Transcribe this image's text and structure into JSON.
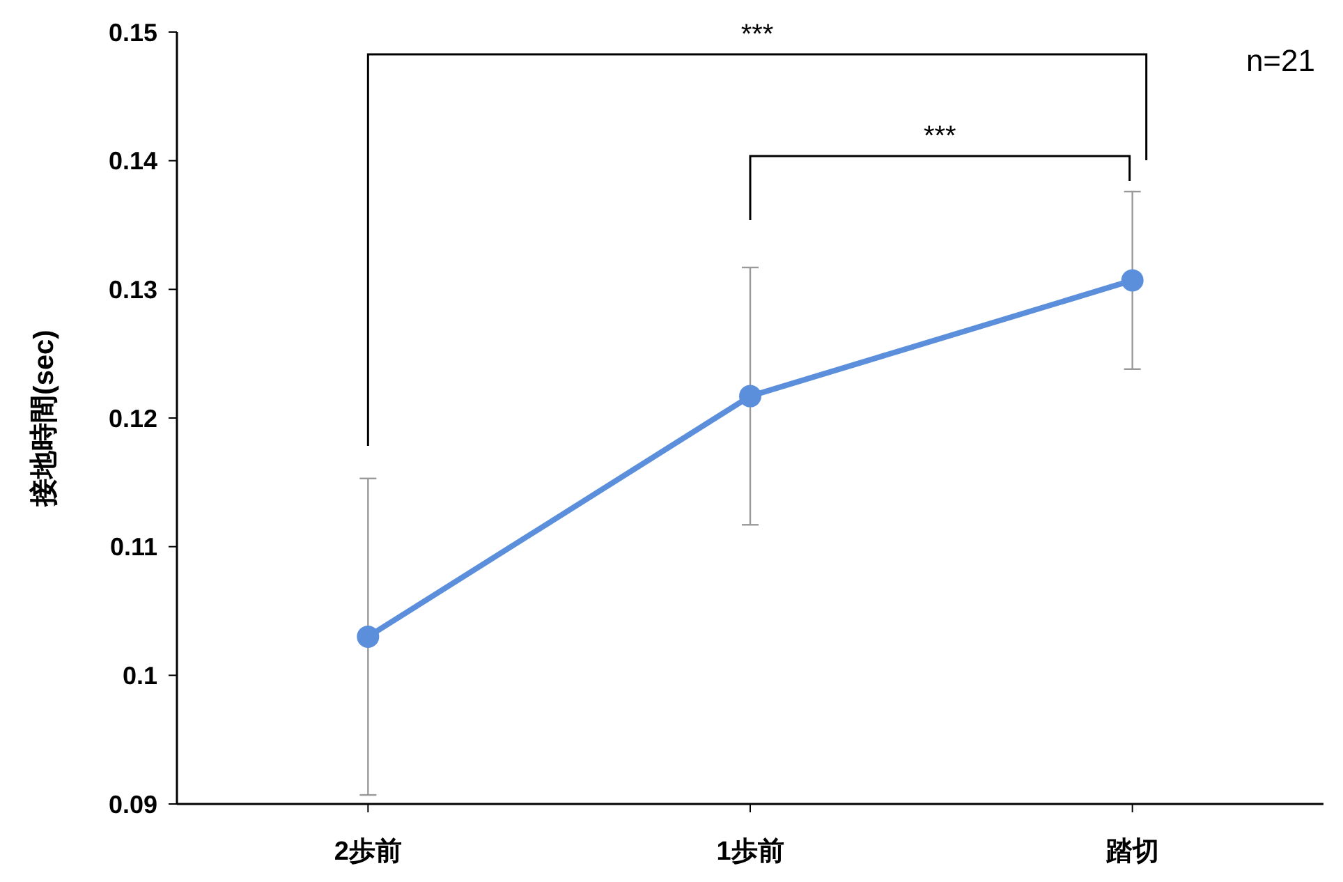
{
  "chart_data": {
    "type": "line",
    "ylabel": "接地時間(sec)",
    "categories": [
      "2歩前",
      "1歩前",
      "踏切"
    ],
    "series": [
      {
        "color": "#5b8fdc",
        "values": [
          0.103,
          0.1217,
          0.1307
        ],
        "errors": [
          0.0123,
          0.01,
          0.0069
        ]
      }
    ],
    "ylim": [
      0.09,
      0.15
    ],
    "yticks": [
      0.09,
      0.1,
      0.11,
      0.12,
      0.13,
      0.14,
      0.15
    ],
    "grid": false,
    "marker": "circle",
    "line_style": "solid",
    "annotations": [
      "***",
      "***",
      "n=21"
    ]
  }
}
